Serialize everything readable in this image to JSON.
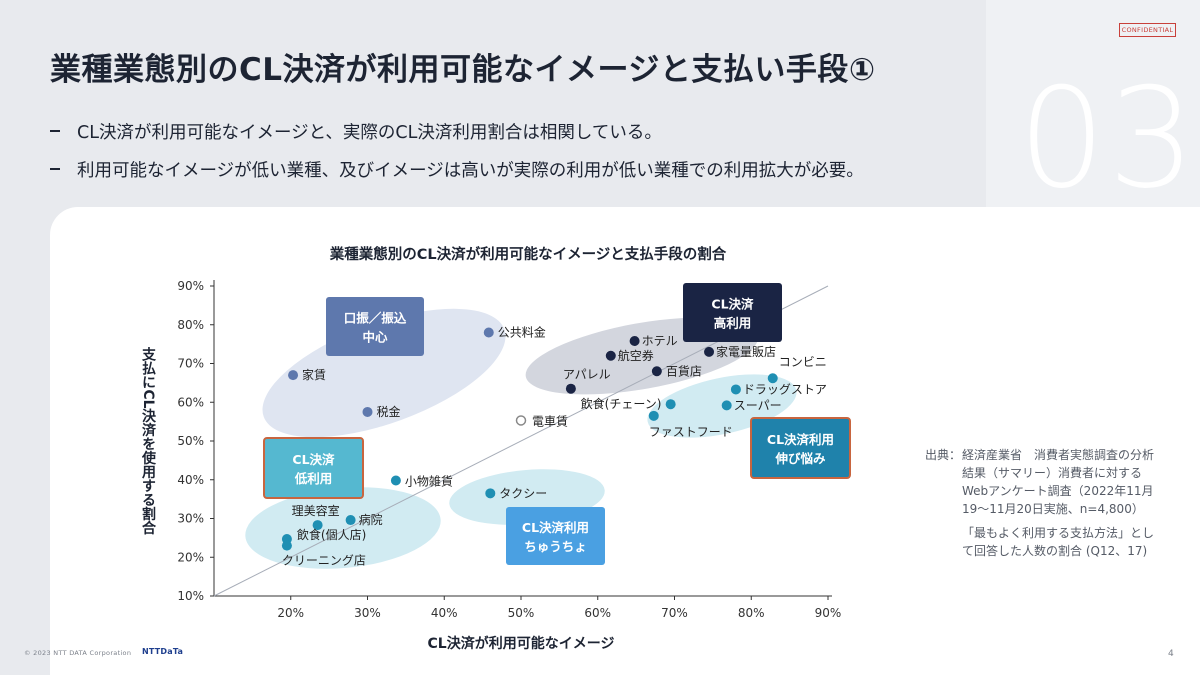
{
  "slide": {
    "title": "業種業態別のCL決済が利用可能なイメージと支払い手段①",
    "section_number": "03",
    "confidential": "CONFIDENTIAL",
    "bullets": [
      "CL決済が利用可能なイメージと、実際のCL決済利用割合は相関している。",
      "利用可能なイメージが低い業種、及びイメージは高いが実際の利用が低い業種での利用拡大が必要。"
    ],
    "footer": "© 2023 NTT DATA Corporation",
    "logo": "NTTDaTa",
    "page_number": "4"
  },
  "source": {
    "label": "出典：",
    "text": "経済産業省　消費者実態調査の分析結果（サマリー）消費者に対するWebアンケート調査（2022年11月19〜11月20日実施、n=4,800）",
    "note": "「最もよく利用する支払方法」として回答した人数の割合 (Q12、17)"
  },
  "colors": {
    "navy": "#1a2444",
    "blue_mid": "#5e78ad",
    "teal": "#1f8fb3",
    "cluster_navy": "#d3d6de",
    "cluster_blue": "#dfe5f1",
    "cluster_teal": "#d1ebf2",
    "box_navy": "#1a2444",
    "box_blue": "#5e78ad",
    "box_teal": "#55b8d0",
    "box_teal_dark": "#1f82ab",
    "box_blue_light": "#4aa0e2",
    "box_border": "#c8653f"
  },
  "chart_data": {
    "type": "scatter",
    "title": "業種業態別のCL決済が利用可能なイメージと支払手段の割合",
    "xlabel": "CL決済が利用可能なイメージ",
    "ylabel": "支払にCL決済を使用する割合",
    "xlim": [
      0.1,
      0.9
    ],
    "ylim": [
      0.1,
      0.9
    ],
    "x_ticks": [
      "20%",
      "30%",
      "40%",
      "50%",
      "60%",
      "70%",
      "80%",
      "90%"
    ],
    "y_ticks": [
      "10%",
      "20%",
      "30%",
      "40%",
      "50%",
      "60%",
      "70%",
      "80%",
      "90%"
    ],
    "diagonal_line": true,
    "points": [
      {
        "label": "公共料金",
        "x": 0.458,
        "y": 0.78,
        "group": "blue_mid"
      },
      {
        "label": "家賃",
        "x": 0.203,
        "y": 0.67,
        "group": "blue_mid"
      },
      {
        "label": "税金",
        "x": 0.3,
        "y": 0.575,
        "group": "blue_mid"
      },
      {
        "label": "ホテル",
        "x": 0.648,
        "y": 0.758,
        "group": "navy"
      },
      {
        "label": "航空券",
        "x": 0.617,
        "y": 0.72,
        "group": "navy"
      },
      {
        "label": "家電量販店",
        "x": 0.745,
        "y": 0.73,
        "group": "navy"
      },
      {
        "label": "百貨店",
        "x": 0.677,
        "y": 0.68,
        "group": "navy"
      },
      {
        "label": "アパレル",
        "x": 0.565,
        "y": 0.635,
        "group": "navy"
      },
      {
        "label": "コンビニ",
        "x": 0.828,
        "y": 0.662,
        "group": "teal"
      },
      {
        "label": "ドラッグストア",
        "x": 0.78,
        "y": 0.633,
        "group": "teal"
      },
      {
        "label": "スーパー",
        "x": 0.768,
        "y": 0.592,
        "group": "teal"
      },
      {
        "label": "飲食(チェーン)",
        "x": 0.695,
        "y": 0.595,
        "group": "teal"
      },
      {
        "label": "ファストフード",
        "x": 0.673,
        "y": 0.565,
        "group": "teal"
      },
      {
        "label": "電車賃",
        "x": 0.5,
        "y": 0.553,
        "group": "hollow"
      },
      {
        "label": "小物雑貨",
        "x": 0.337,
        "y": 0.398,
        "group": "teal"
      },
      {
        "label": "タクシー",
        "x": 0.46,
        "y": 0.365,
        "group": "teal"
      },
      {
        "label": "病院",
        "x": 0.278,
        "y": 0.296,
        "group": "teal"
      },
      {
        "label": "理美容室",
        "x": 0.235,
        "y": 0.283,
        "group": "teal"
      },
      {
        "label": "飲食(個人店)",
        "x": 0.195,
        "y": 0.247,
        "group": "teal"
      },
      {
        "label": "クリーニング店",
        "x": 0.195,
        "y": 0.23,
        "group": "teal"
      }
    ],
    "category_boxes": [
      {
        "lines": [
          "口振／振込",
          "中心"
        ],
        "style": "box_blue"
      },
      {
        "lines": [
          "CL決済",
          "高利用"
        ],
        "style": "box_navy"
      },
      {
        "lines": [
          "CL決済",
          "低利用"
        ],
        "style": "box_teal"
      },
      {
        "lines": [
          "CL決済利用",
          "伸び悩み"
        ],
        "style": "box_teal_dark"
      },
      {
        "lines": [
          "CL決済利用",
          "ちゅうちょ"
        ],
        "style": "box_blue_light"
      }
    ]
  }
}
